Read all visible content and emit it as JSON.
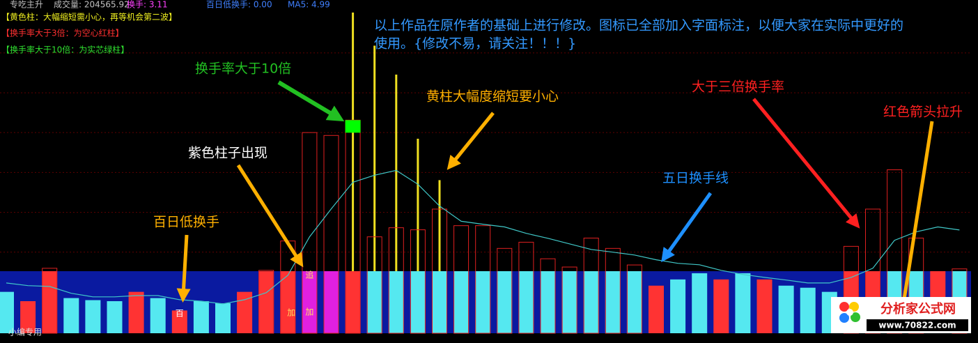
{
  "header": {
    "items": [
      "专吃主升",
      "成交量: 204565.92",
      "换手: 3.11",
      "百日低换手: 0.00",
      "MA5: 4.99"
    ]
  },
  "legend_notes": [
    "【黄色柱：大幅缩短需小心，再等机会第二波】",
    "【换手率大于3倍：为空心红柱】",
    "【换手率大于10倍：为实芯绿柱】"
  ],
  "chart_data": {
    "type": "bar",
    "ylim": [
      0,
      15.5
    ],
    "yticks": [
      3.92,
      5.84,
      7.77,
      9.7,
      11.62,
      13.55
    ],
    "grid": true,
    "band_level": 3,
    "solid_level": 10,
    "series": [
      {
        "name": "换手",
        "values": [
          2.0,
          1.55,
          3.14,
          1.7,
          1.6,
          1.55,
          2.0,
          1.7,
          1.1,
          1.55,
          1.45,
          2.0,
          3.04,
          4.46,
          9.7,
          9.56,
          10.3,
          4.66,
          5.1,
          5.0,
          6.0,
          5.2,
          5.2,
          4.1,
          4.4,
          3.6,
          3.2,
          4.6,
          4.1,
          3.3,
          2.3,
          2.6,
          2.9,
          2.6,
          2.9,
          2.6,
          2.3,
          2.2,
          2.0,
          4.2,
          6.0,
          7.9,
          4.6,
          3.0,
          3.11
        ],
        "colors": [
          "#55e8f0",
          "#ff3333",
          "#ff3333",
          "#55e8f0",
          "#55e8f0",
          "#55e8f0",
          "#ff3333",
          "#55e8f0",
          "#ff3333",
          "#55e8f0",
          "#55e8f0",
          "#ff3333",
          "#ff3333",
          "#ff3333",
          "#e020e0",
          "#e020e0",
          "#ff3333",
          "#55e8f0",
          "#55e8f0",
          "#55e8f0",
          "#55e8f0",
          "#55e8f0",
          "#55e8f0",
          "#55e8f0",
          "#55e8f0",
          "#55e8f0",
          "#55e8f0",
          "#55e8f0",
          "#55e8f0",
          "#55e8f0",
          "#ff3333",
          "#55e8f0",
          "#55e8f0",
          "#ff3333",
          "#55e8f0",
          "#ff3333",
          "#55e8f0",
          "#55e8f0",
          "#55e8f0",
          "#ff3333",
          "#ff3333",
          "#55e8f0",
          "#55e8f0",
          "#ff3333",
          "#55e8f0"
        ]
      },
      {
        "name": "黄色柱",
        "color": "#f0e020",
        "values": [
          null,
          null,
          null,
          null,
          null,
          null,
          null,
          null,
          null,
          null,
          null,
          null,
          null,
          null,
          null,
          null,
          15.5,
          13.9,
          12.5,
          9.4,
          7.4,
          null,
          null,
          null,
          null,
          null,
          null,
          null,
          null,
          null,
          null,
          null,
          null,
          null,
          null,
          null,
          null,
          null,
          null,
          null,
          null,
          null,
          null,
          null,
          null
        ]
      },
      {
        "name": "黄色短柱",
        "color": "#f0e020",
        "values": [
          null,
          null,
          null,
          null,
          null,
          null,
          null,
          null,
          null,
          null,
          null,
          null,
          null,
          null,
          null,
          null,
          null,
          null,
          null,
          2.6,
          2.8,
          null,
          null,
          null,
          2.6,
          1.55,
          0.55,
          null,
          null,
          null,
          null,
          null,
          null,
          null,
          null,
          null,
          null,
          null,
          null,
          null,
          null,
          null,
          null,
          null,
          null
        ]
      },
      {
        "name": "MA5",
        "color": "#40c8c8",
        "values": [
          2.43,
          2.3,
          2.26,
          1.93,
          1.76,
          1.76,
          1.82,
          1.82,
          1.62,
          1.55,
          1.42,
          1.62,
          1.96,
          2.8,
          4.66,
          6.01,
          7.3,
          7.64,
          7.87,
          7.2,
          6.15,
          5.41,
          5.27,
          5.14,
          4.83,
          4.59,
          4.32,
          4.05,
          3.92,
          3.78,
          3.55,
          3.38,
          3.31,
          3.04,
          2.84,
          2.7,
          2.57,
          2.43,
          2.43,
          2.7,
          3.14,
          4.49,
          4.9,
          5.14,
          4.99
        ]
      }
    ],
    "bar_labels": [
      {
        "index": 8,
        "text": "百"
      },
      {
        "index": 14,
        "text": "追"
      },
      {
        "index": 13,
        "text": "加"
      },
      {
        "index": 14,
        "text": "加"
      }
    ]
  },
  "annotations": [
    "以上作品在原作者的基础上进行修改。图标已全部加入字面标注，以便大家在实际中更好的",
    "使用。{修改不易，请关注！！！}",
    "换手率大于10倍",
    "黄柱大幅度缩短要小心",
    "紫色柱子出现",
    "百日低换手",
    "五日换手线",
    "大于三倍换手率",
    "红色箭头拉升"
  ],
  "footer": "小编专用",
  "logo": {
    "title": "分析家公式网",
    "url": "www.70822.com"
  }
}
